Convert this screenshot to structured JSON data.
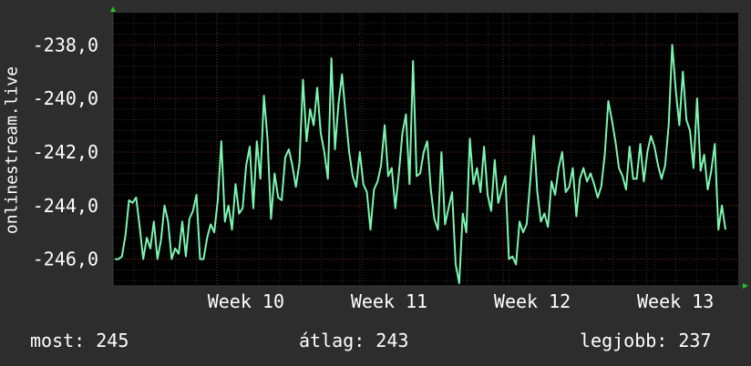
{
  "chart_data": {
    "type": "line",
    "title": "",
    "ylabel": "onlinestream.live",
    "xlabel": "",
    "ylim": [
      -247.0,
      -236.8
    ],
    "y_ticks": [
      "-238,0",
      "-240,0",
      "-242,0",
      "-244,0",
      "-246,0"
    ],
    "y_tick_values": [
      -238,
      -240,
      -242,
      -244,
      -246
    ],
    "x_ticks": [
      "Week 10",
      "Week 11",
      "Week 12",
      "Week 13"
    ],
    "x_tick_positions": [
      0.166,
      0.395,
      0.624,
      0.853
    ],
    "grid": true,
    "line_color": "#7cf5b0",
    "series": [
      {
        "values": [
          -246.0,
          -246.0,
          -245.9,
          -245.1,
          -243.8,
          -243.9,
          -243.7,
          -244.8,
          -246.0,
          -245.2,
          -245.6,
          -244.6,
          -246.0,
          -245.3,
          -244.0,
          -244.6,
          -246.0,
          -245.6,
          -245.8,
          -244.6,
          -245.9,
          -244.5,
          -244.2,
          -243.6,
          -246.0,
          -246.0,
          -245.2,
          -244.7,
          -245.0,
          -243.8,
          -241.6,
          -244.6,
          -244.0,
          -244.9,
          -243.2,
          -244.3,
          -244.1,
          -242.5,
          -241.8,
          -244.1,
          -241.6,
          -243.0,
          -239.9,
          -241.5,
          -244.5,
          -242.8,
          -243.7,
          -243.8,
          -242.2,
          -241.9,
          -242.5,
          -243.3,
          -242.4,
          -239.3,
          -241.6,
          -240.4,
          -241.0,
          -239.6,
          -241.3,
          -242.0,
          -243.0,
          -238.5,
          -241.9,
          -240.2,
          -239.1,
          -240.6,
          -242.0,
          -242.9,
          -243.3,
          -242.0,
          -243.2,
          -243.5,
          -244.9,
          -243.4,
          -243.1,
          -242.5,
          -241.0,
          -242.9,
          -242.6,
          -244.1,
          -242.8,
          -241.3,
          -240.6,
          -243.2,
          -238.6,
          -242.9,
          -242.8,
          -242.0,
          -241.6,
          -243.4,
          -244.5,
          -244.9,
          -242.0,
          -244.7,
          -244.1,
          -243.5,
          -246.2,
          -246.9,
          -244.3,
          -245.0,
          -241.5,
          -243.2,
          -242.6,
          -243.5,
          -241.8,
          -243.6,
          -244.2,
          -242.3,
          -243.9,
          -243.4,
          -242.9,
          -246.0,
          -245.9,
          -246.2,
          -244.6,
          -245.0,
          -244.7,
          -243.1,
          -241.4,
          -243.5,
          -244.6,
          -244.3,
          -244.8,
          -243.1,
          -243.6,
          -242.6,
          -242.0,
          -243.5,
          -243.3,
          -242.6,
          -244.4,
          -243.0,
          -242.6,
          -243.1,
          -242.8,
          -243.2,
          -243.7,
          -243.3,
          -242.1,
          -240.1,
          -240.8,
          -241.6,
          -242.6,
          -242.9,
          -243.4,
          -241.8,
          -243.0,
          -243.0,
          -241.7,
          -243.1,
          -242.0,
          -241.4,
          -241.8,
          -242.5,
          -243.0,
          -242.5,
          -241.0,
          -238.0,
          -239.7,
          -241.0,
          -239.0,
          -240.8,
          -241.2,
          -242.6,
          -240.0,
          -242.7,
          -242.1,
          -243.4,
          -242.7,
          -241.7,
          -244.9,
          -244.0,
          -244.9
        ]
      }
    ]
  },
  "footer": {
    "current": "most: 245",
    "average": "átlag: 243",
    "best": "legjobb: 237"
  }
}
